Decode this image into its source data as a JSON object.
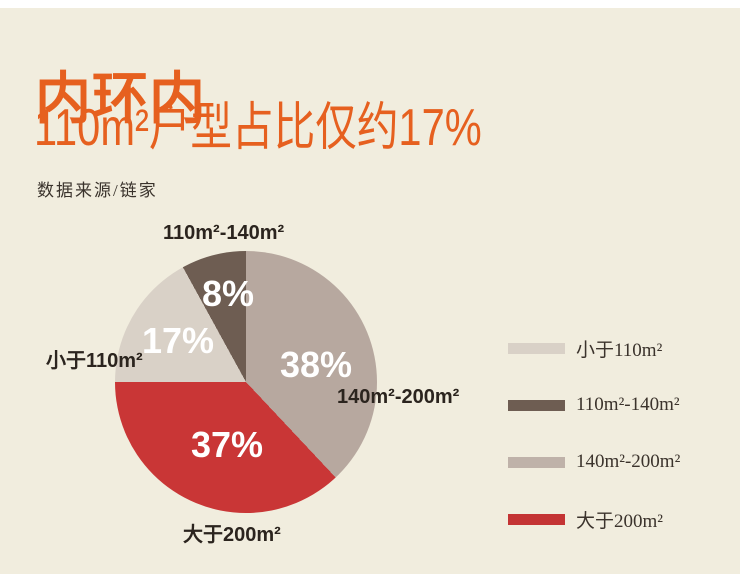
{
  "page": {
    "background_color": "#f1edde",
    "top_strip_color": "#ffffff",
    "accent_color": "#e6601f"
  },
  "header": {
    "title": "内环内",
    "subtitle": "110m²户型占比仅约17%",
    "source": "数据来源/链家"
  },
  "chart_data": {
    "type": "pie",
    "title": "内环内110m²户型占比仅约17%",
    "start_angle_deg": 0,
    "direction": "clockwise",
    "slices": [
      {
        "label": "140m²-200m²",
        "value": 38,
        "pct": "38%",
        "color": "#b7a89f"
      },
      {
        "label": "大于200m²",
        "value": 37,
        "pct": "37%",
        "color": "#c93636"
      },
      {
        "label": "小于110m²",
        "value": 17,
        "pct": "17%",
        "color": "#d9d1c7"
      },
      {
        "label": "110m²-140m²",
        "value": 8,
        "pct": "8%",
        "color": "#6e5d52"
      }
    ],
    "legend_position": "right",
    "legend": [
      {
        "label": "小于110m²",
        "color": "#d9d1c7"
      },
      {
        "label": "110m²-140m²",
        "color": "#6e5d52"
      },
      {
        "label": "140m²-200m²",
        "color": "#bfb2a9"
      },
      {
        "label": "大于200m²",
        "color": "#c43434"
      }
    ],
    "value_label_color": "#ffffff",
    "slice_label_color": "#2b241e"
  }
}
